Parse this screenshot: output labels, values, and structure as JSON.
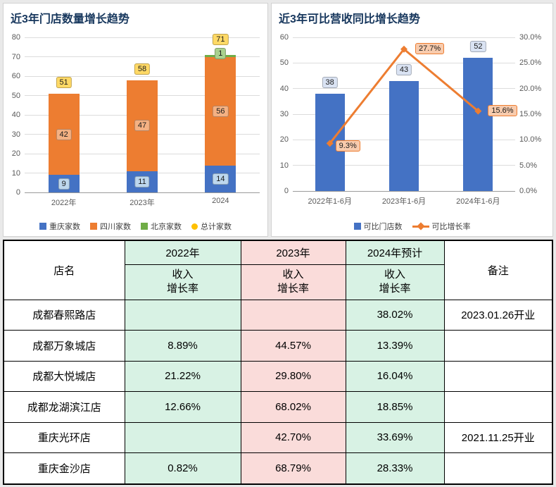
{
  "chart_data": [
    {
      "type": "bar",
      "stacked": true,
      "title": "近3年门店数量增长趋势",
      "categories": [
        "2022年",
        "2023年",
        "2024"
      ],
      "series": [
        {
          "name": "重庆家数",
          "color": "#4472C4",
          "label_bg": "#BDD7EE",
          "values": [
            9,
            11,
            14
          ]
        },
        {
          "name": "四川家数",
          "color": "#ED7D31",
          "label_bg": "#F4B183",
          "values": [
            42,
            47,
            56
          ]
        },
        {
          "name": "北京家数",
          "color": "#70AD47",
          "label_bg": "#A9D18E",
          "values": [
            0,
            0,
            1
          ]
        }
      ],
      "totals": {
        "name": "总计家数",
        "color": "#FFC000",
        "label_bg": "#FFD966",
        "values": [
          51,
          58,
          71
        ]
      },
      "xlabel": "",
      "ylabel": "",
      "ylim": [
        0,
        80
      ],
      "y_ticks": [
        0,
        10,
        20,
        30,
        40,
        50,
        60,
        70,
        80
      ],
      "grid": true,
      "legend_position": "bottom"
    },
    {
      "type": "bar+line",
      "title": "近3年可比营收同比增长趋势",
      "categories": [
        "2022年1-6月",
        "2023年1-6月",
        "2024年1-6月"
      ],
      "bar_series": {
        "name": "可比门店数",
        "color": "#4472C4",
        "label_bg": "#DAE3F3",
        "values": [
          38,
          43,
          52
        ]
      },
      "line_series": {
        "name": "可比增长率",
        "color": "#ED7D31",
        "label_bg": "#F8CBAD",
        "values_pct": [
          9.3,
          27.7,
          15.6
        ],
        "labels": [
          "9.3%",
          "27.7%",
          "15.6%"
        ]
      },
      "left_axis": {
        "lim": [
          0,
          60
        ],
        "ticks": [
          0,
          10,
          20,
          30,
          40,
          50,
          60
        ]
      },
      "right_axis": {
        "lim": [
          0,
          30
        ],
        "tick_labels": [
          "0.0%",
          "5.0%",
          "10.0%",
          "15.0%",
          "20.0%",
          "25.0%",
          "30.0%"
        ]
      },
      "grid": true,
      "legend_position": "bottom"
    }
  ],
  "table": {
    "columns": {
      "store": "店名",
      "y2022": "2022年",
      "y2023": "2023年",
      "y2024": "2024年预计",
      "note": "备注",
      "sub_label": "收入\n增长率"
    },
    "col_colors": {
      "y2022_bg": "#D8F2E4",
      "y2023_bg": "#FADCDA",
      "y2024_bg": "#D8F2E4"
    },
    "rows": [
      {
        "store": "成都春熙路店",
        "y2022": "",
        "y2023": "",
        "y2024": "38.02%",
        "note": "2023.01.26开业"
      },
      {
        "store": "成都万象城店",
        "y2022": "8.89%",
        "y2023": "44.57%",
        "y2024": "13.39%",
        "note": ""
      },
      {
        "store": "成都大悦城店",
        "y2022": "21.22%",
        "y2023": "29.80%",
        "y2024": "16.04%",
        "note": ""
      },
      {
        "store": "成都龙湖滨江店",
        "y2022": "12.66%",
        "y2023": "68.02%",
        "y2024": "18.85%",
        "note": ""
      },
      {
        "store": "重庆光环店",
        "y2022": "",
        "y2023": "42.70%",
        "y2024": "33.69%",
        "note": "2021.11.25开业"
      },
      {
        "store": "重庆金沙店",
        "y2022": "0.82%",
        "y2023": "68.79%",
        "y2024": "28.33%",
        "note": ""
      }
    ]
  }
}
